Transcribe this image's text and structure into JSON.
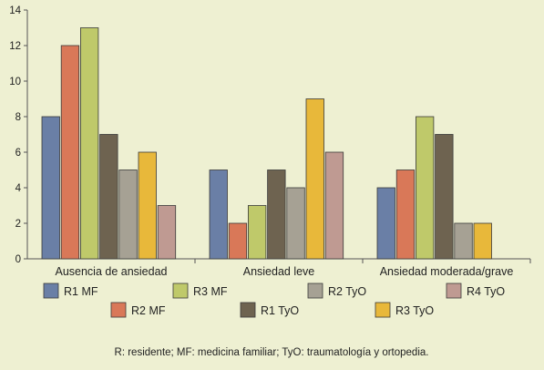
{
  "chart_data": {
    "type": "bar",
    "categories": [
      "Ausencia de ansiedad",
      "Ansiedad leve",
      "Ansiedad moderada/grave"
    ],
    "series": [
      {
        "name": "R1 MF",
        "color": "#6a7fa6",
        "values": [
          8,
          5,
          4
        ]
      },
      {
        "name": "R2 MF",
        "color": "#d97858",
        "values": [
          12,
          2,
          5
        ]
      },
      {
        "name": "R3 MF",
        "color": "#bfc96a",
        "values": [
          13,
          3,
          8
        ]
      },
      {
        "name": "R1 TyO",
        "color": "#6e6350",
        "values": [
          7,
          5,
          7
        ]
      },
      {
        "name": "R2 TyO",
        "color": "#a6a194",
        "values": [
          5,
          4,
          2
        ]
      },
      {
        "name": "R3 TyO",
        "color": "#e8b83a",
        "values": [
          6,
          9,
          2
        ]
      },
      {
        "name": "R4 TyO",
        "color": "#bf9a92",
        "values": [
          3,
          6,
          null
        ]
      }
    ],
    "ylim": [
      0,
      14
    ],
    "yticks": [
      0,
      2,
      4,
      6,
      8,
      10,
      12,
      14
    ],
    "grid": false,
    "legend_position": "bottom",
    "title": "",
    "xlabel": "",
    "ylabel": ""
  },
  "footnote": "R: residente; MF: medicina familiar; TyO: traumatología y ortopedia."
}
